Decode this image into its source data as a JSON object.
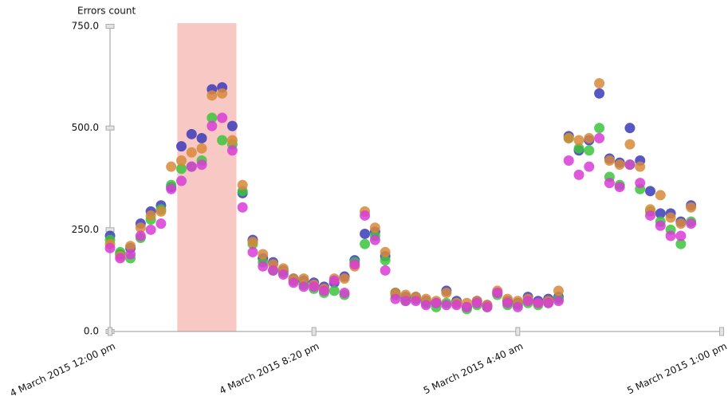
{
  "chart_data": {
    "type": "scatter",
    "y_label": "Errors count",
    "x": [
      0,
      25,
      50,
      75,
      100,
      125,
      150,
      175,
      200,
      225,
      250,
      275,
      300,
      325,
      350,
      375,
      400,
      425,
      450,
      475,
      500,
      525,
      550,
      575,
      600,
      625,
      650,
      675,
      700,
      725,
      750,
      775,
      800,
      825,
      850,
      875,
      900,
      925,
      950,
      975,
      1000,
      1025,
      1050,
      1075,
      1100,
      1125,
      1150,
      1175,
      1200,
      1225,
      1250,
      1275,
      1300,
      1325,
      1350,
      1375,
      1400,
      1425
    ],
    "series": [
      {
        "color": "#3b3bbb",
        "values": [
          235,
          190,
          205,
          265,
          295,
          310,
          355,
          455,
          485,
          475,
          595,
          600,
          505,
          340,
          225,
          180,
          170,
          150,
          130,
          125,
          120,
          110,
          120,
          135,
          175,
          240,
          245,
          185,
          95,
          85,
          85,
          75,
          70,
          100,
          75,
          60,
          75,
          65,
          95,
          75,
          70,
          85,
          75,
          80,
          85,
          480,
          445,
          470,
          585,
          425,
          415,
          500,
          420,
          345,
          290,
          290,
          270,
          310
        ]
      },
      {
        "color": "#3cc43c",
        "values": [
          225,
          195,
          180,
          230,
          275,
          300,
          360,
          400,
          405,
          420,
          525,
          470,
          460,
          345,
          215,
          170,
          150,
          145,
          125,
          115,
          105,
          95,
          100,
          90,
          170,
          215,
          235,
          175,
          90,
          75,
          80,
          70,
          60,
          70,
          70,
          55,
          65,
          60,
          90,
          65,
          65,
          70,
          65,
          70,
          80,
          475,
          450,
          445,
          500,
          380,
          360,
          410,
          350,
          295,
          270,
          250,
          215,
          270
        ]
      },
      {
        "color": "#d8883a",
        "values": [
          215,
          185,
          210,
          255,
          285,
          295,
          405,
          420,
          440,
          450,
          580,
          585,
          470,
          360,
          220,
          190,
          165,
          155,
          130,
          130,
          115,
          105,
          130,
          130,
          160,
          295,
          255,
          195,
          95,
          90,
          85,
          80,
          75,
          95,
          70,
          70,
          75,
          65,
          100,
          80,
          75,
          80,
          70,
          75,
          100,
          475,
          470,
          475,
          610,
          420,
          410,
          460,
          405,
          300,
          335,
          280,
          265,
          305
        ]
      },
      {
        "color": "#d83cd6",
        "values": [
          205,
          180,
          190,
          235,
          250,
          265,
          350,
          370,
          405,
          410,
          505,
          525,
          445,
          305,
          195,
          160,
          150,
          140,
          120,
          110,
          110,
          100,
          125,
          95,
          165,
          285,
          225,
          150,
          80,
          75,
          75,
          65,
          70,
          65,
          65,
          60,
          70,
          60,
          95,
          70,
          60,
          75,
          70,
          70,
          75,
          420,
          385,
          405,
          475,
          365,
          355,
          410,
          365,
          285,
          260,
          235,
          235,
          265
        ]
      }
    ],
    "highlight": [
      165,
      310
    ],
    "xlim": [
      0,
      1500
    ],
    "xticks": [
      {
        "value": 0,
        "label": "4 March 2015 12:00 pm"
      },
      {
        "value": 500,
        "label": "4 March 2015 8:20 pm"
      },
      {
        "value": 1000,
        "label": "5 March 2015 4:40 am"
      },
      {
        "value": 1500,
        "label": "5 March 2015 1:00 pm"
      }
    ],
    "ylim": [
      0,
      750
    ],
    "yticks": [
      {
        "value": 0,
        "label": "0.0"
      },
      {
        "value": 250,
        "label": "250.0"
      },
      {
        "value": 500,
        "label": "500.0"
      },
      {
        "value": 750,
        "label": "750.0"
      }
    ]
  }
}
